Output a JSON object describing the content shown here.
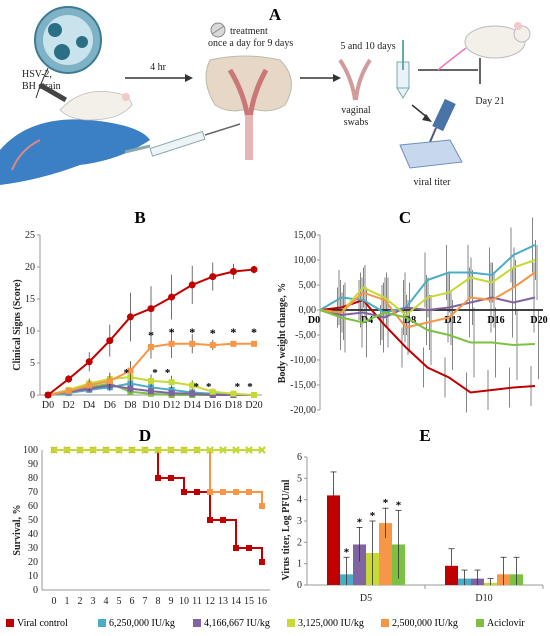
{
  "panel_labels": {
    "a": "A",
    "b": "B",
    "c": "C",
    "d": "D",
    "e": "E"
  },
  "schematic": {
    "virus": "HSV-2,\nBH strain",
    "delay": "4 hr",
    "treatment": "treatment\nonce a day for 9 days",
    "swab_days": "5 and 10 days",
    "swabs": "vaginal\nswabs",
    "endpoint": "Day 21",
    "titer": "viral titer"
  },
  "colors": {
    "viral_control": "#c00000",
    "d6250000": "#4bacc6",
    "d4166667": "#8064a2",
    "d3125000": "#c6d935",
    "d2500000": "#f79646",
    "aciclovir": "#7bc142"
  },
  "legend": [
    {
      "label": "Viral control",
      "color": "#c00000"
    },
    {
      "label": "6,250,000 IU/kg",
      "color": "#4bacc6"
    },
    {
      "label": "4,166,667 IU/kg",
      "color": "#8064a2"
    },
    {
      "label": "3,125,000 IU/kg",
      "color": "#c6d935"
    },
    {
      "label": "2,500,000 IU/kg",
      "color": "#f79646"
    },
    {
      "label": "Aciclovir",
      "color": "#7bc142"
    }
  ],
  "chart_data": [
    {
      "panel": "B",
      "type": "line",
      "ylabel": "Clinical Signs (Score)",
      "ylim": [
        0,
        25
      ],
      "yticks": [
        0,
        5,
        10,
        15,
        20,
        25
      ],
      "x": [
        "D0",
        "D2",
        "D4",
        "D6",
        "D8",
        "D10",
        "D12",
        "D14",
        "D16",
        "D18",
        "D20"
      ],
      "series": [
        {
          "name": "Viral control",
          "color": "#c00000",
          "values": [
            0,
            2.5,
            5.2,
            8.5,
            12.2,
            13.5,
            15.3,
            17.2,
            18.5,
            19.3,
            19.6
          ],
          "err": [
            0,
            0.6,
            1.5,
            2.5,
            3.8,
            3.5,
            3.5,
            3.0,
            2.2,
            1.2,
            0.6
          ]
        },
        {
          "name": "2,500,000 IU/kg",
          "color": "#f79646",
          "values": [
            0,
            0.6,
            1.5,
            2.2,
            3.8,
            7.5,
            8.0,
            8.0,
            7.8,
            8.0,
            8.0
          ],
          "err": [
            0,
            0.3,
            0.8,
            1.2,
            1.5,
            1.8,
            2.2,
            1.5,
            0.8,
            0.3,
            0.3
          ]
        },
        {
          "name": "3,125,000 IU/kg",
          "color": "#c6d935",
          "values": [
            0,
            0.8,
            1.8,
            2.5,
            2.8,
            2.2,
            2.0,
            1.5,
            0.5,
            0.2,
            0
          ],
          "err": [
            0,
            0.4,
            0.8,
            1.0,
            1.2,
            1.0,
            1.0,
            0.8,
            0.5,
            0.2,
            0
          ]
        },
        {
          "name": "4,166,667 IU/kg",
          "color": "#8064a2",
          "values": [
            0,
            0.5,
            1.0,
            1.5,
            1.0,
            0.6,
            0.3,
            0.2,
            0,
            0,
            0
          ],
          "err": [
            0,
            0.3,
            0.5,
            0.7,
            0.6,
            0.4,
            0.3,
            0.2,
            0,
            0,
            0
          ]
        },
        {
          "name": "6,250,000 IU/kg",
          "color": "#4bacc6",
          "values": [
            0,
            0.3,
            0.8,
            1.2,
            1.8,
            1.2,
            0.8,
            0.4,
            0.2,
            0,
            0
          ],
          "err": [
            0,
            0.2,
            0.5,
            0.6,
            0.8,
            0.6,
            0.5,
            0.3,
            0.2,
            0,
            0
          ]
        },
        {
          "name": "Aciclovir",
          "color": "#7bc142",
          "values": [
            0,
            0.5,
            1.2,
            1.8,
            0.5,
            0.2,
            0,
            0,
            0,
            0,
            0
          ],
          "err": [
            0,
            0.3,
            0.6,
            0.8,
            0.4,
            0.2,
            0,
            0,
            0,
            0,
            0
          ]
        }
      ],
      "annotations": "*"
    },
    {
      "panel": "C",
      "type": "line",
      "ylabel": "Body weight change, %",
      "ylim": [
        -20,
        15
      ],
      "yticks": [
        "15,00",
        "10,00",
        "5,00",
        "0,00",
        "-5,00",
        "-10,00",
        "-15,00",
        "-20,00"
      ],
      "x_labels": [
        "D0",
        "D4",
        "D8",
        "D12",
        "D16",
        "D20"
      ],
      "series": [
        {
          "name": "Viral control",
          "color": "#c00000",
          "values": [
            0,
            0.5,
            2.0,
            -3.0,
            -7.5,
            -11.5,
            -13.5,
            -16.5,
            -16.0,
            -15.5,
            -15.2
          ]
        },
        {
          "name": "6,250,000 IU/kg",
          "color": "#4bacc6",
          "values": [
            0,
            2.5,
            2.0,
            -0.5,
            0.5,
            6.0,
            7.5,
            7.5,
            7.0,
            11.0,
            13.0
          ]
        },
        {
          "name": "4,166,667 IU/kg",
          "color": "#8064a2",
          "values": [
            0,
            -1.0,
            -0.5,
            -1.5,
            0.5,
            0.0,
            0.5,
            1.5,
            2.5,
            1.5,
            2.5
          ]
        },
        {
          "name": "3,125,000 IU/kg",
          "color": "#c6d935",
          "values": [
            0,
            -0.5,
            4.5,
            2.5,
            -1.0,
            2.5,
            3.5,
            6.5,
            5.5,
            8.5,
            10.0
          ]
        },
        {
          "name": "2,500,000 IU/kg",
          "color": "#f79646",
          "values": [
            0,
            -0.5,
            3.5,
            2.0,
            -3.5,
            -2.5,
            -1.5,
            2.5,
            2.0,
            4.5,
            7.5
          ]
        },
        {
          "name": "Aciclovir",
          "color": "#7bc142",
          "values": [
            0,
            -1.5,
            -2.5,
            -0.5,
            -1.5,
            -4.0,
            -5.0,
            -6.5,
            -6.5,
            -7.0,
            -6.8
          ]
        }
      ]
    },
    {
      "panel": "D",
      "type": "line",
      "ylabel": "Survival, %",
      "ylim": [
        0,
        100
      ],
      "yticks": [
        0,
        10,
        20,
        30,
        40,
        50,
        60,
        70,
        80,
        90,
        100
      ],
      "x": [
        0,
        1,
        2,
        3,
        4,
        5,
        6,
        7,
        8,
        9,
        10,
        11,
        12,
        13,
        14,
        15,
        16
      ],
      "series": [
        {
          "name": "Viral control",
          "color": "#c00000",
          "values": [
            100,
            100,
            100,
            100,
            100,
            100,
            100,
            100,
            80,
            80,
            70,
            70,
            50,
            50,
            30,
            30,
            20
          ]
        },
        {
          "name": "2,500,000 IU/kg",
          "color": "#f79646",
          "values": [
            100,
            100,
            100,
            100,
            100,
            100,
            100,
            100,
            100,
            100,
            100,
            100,
            70,
            70,
            70,
            70,
            60
          ]
        },
        {
          "name": "Aciclovir",
          "color": "#7bc142",
          "values": [
            100,
            100,
            100,
            100,
            100,
            100,
            100,
            100,
            100,
            100,
            100,
            100,
            100,
            100,
            100,
            100,
            100
          ]
        },
        {
          "name": "3,125,000 IU/kg",
          "color": "#c6d935",
          "values": [
            100,
            100,
            100,
            100,
            100,
            100,
            100,
            100,
            100,
            100,
            100,
            100,
            100,
            100,
            100,
            100,
            100
          ]
        }
      ]
    },
    {
      "panel": "E",
      "type": "bar",
      "ylabel": "Virus titer, Log PFU/ml",
      "ylim": [
        0,
        6
      ],
      "yticks": [
        0,
        1,
        2,
        3,
        4,
        5,
        6
      ],
      "categories": [
        "D5",
        "D10"
      ],
      "series": [
        {
          "name": "Viral control",
          "color": "#c00000",
          "values": [
            4.2,
            0.9
          ],
          "err": [
            1.1,
            0.8
          ]
        },
        {
          "name": "6,250,000 IU/kg",
          "color": "#4bacc6",
          "values": [
            0.5,
            0.3
          ],
          "err": [
            0.8,
            0.4
          ]
        },
        {
          "name": "4,166,667 IU/kg",
          "color": "#8064a2",
          "values": [
            1.9,
            0.3
          ],
          "err": [
            0.8,
            0.4
          ]
        },
        {
          "name": "3,125,000 IU/kg",
          "color": "#c6d935",
          "values": [
            1.5,
            0.1
          ],
          "err": [
            1.5,
            0.2
          ]
        },
        {
          "name": "2,500,000 IU/kg",
          "color": "#f79646",
          "values": [
            2.9,
            0.5
          ],
          "err": [
            0.7,
            0.8
          ]
        },
        {
          "name": "Aciclovir",
          "color": "#7bc142",
          "values": [
            1.9,
            0.5
          ],
          "err": [
            1.6,
            0.8
          ]
        }
      ],
      "annotations": "*"
    }
  ]
}
